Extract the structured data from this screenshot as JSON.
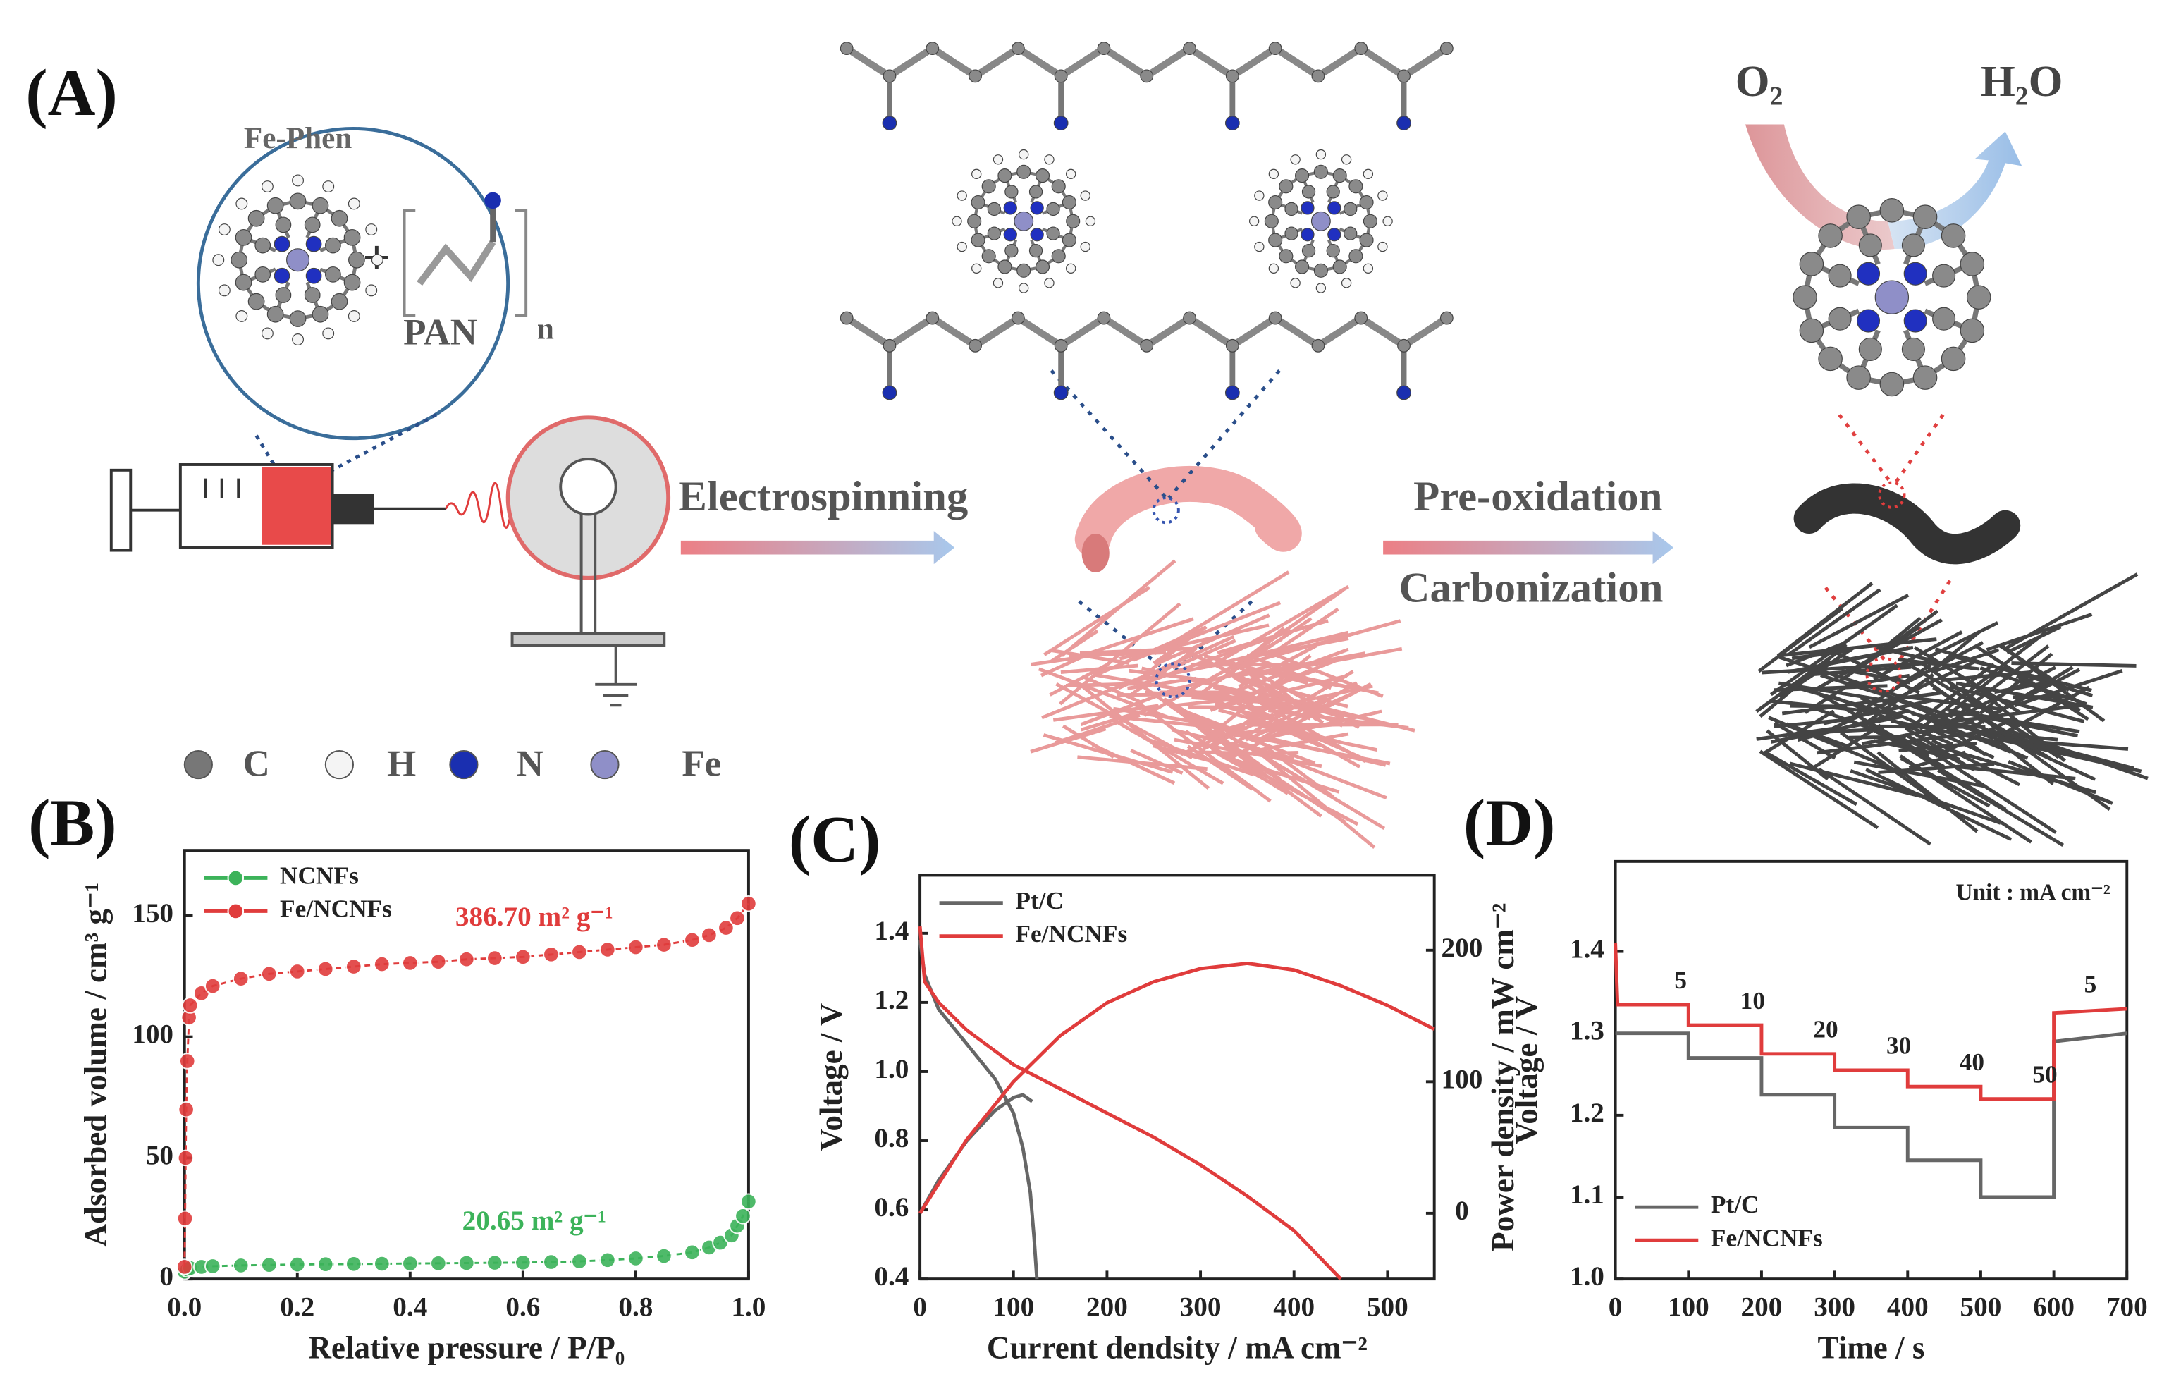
{
  "panel_a": {
    "label": "(A)",
    "fe_phen": "Fe-Phen",
    "plus": "+",
    "pan": "PAN",
    "n": "n",
    "electrospinning": "Electrospinning",
    "pre_oxidation": "Pre-oxidation",
    "carbonization": "Carbonization",
    "o2": "O₂",
    "h2o": "H₂O",
    "legend": [
      "C",
      "H",
      "N",
      "Fe"
    ]
  },
  "chart_data": [
    {
      "type": "line",
      "markers": true,
      "panel_label": "(B)",
      "xlabel": "Relative pressure / P/P₀",
      "ylabel": "Adsorbed volume / cm³ g⁻¹",
      "xlim": [
        0,
        1
      ],
      "ylim": [
        0,
        177
      ],
      "xticks": [
        {
          "value": 0,
          "label": "0.0"
        },
        0.2,
        0.4,
        0.6,
        0.8,
        {
          "value": 1,
          "label": "1.0"
        }
      ],
      "yticks": [
        0,
        50,
        100,
        150
      ],
      "legend": "upper left",
      "series": [
        {
          "name": "NCNFs",
          "color": "#3cb35a",
          "x": [
            0,
            0.005,
            0.01,
            0.03,
            0.05,
            0.1,
            0.15,
            0.2,
            0.25,
            0.3,
            0.35,
            0.4,
            0.45,
            0.5,
            0.55,
            0.6,
            0.65,
            0.7,
            0.75,
            0.8,
            0.85,
            0.9,
            0.93,
            0.95,
            0.97,
            0.98,
            0.99,
            1.0
          ],
          "values": [
            3,
            4,
            4.5,
            5,
            5.3,
            5.6,
            5.8,
            6,
            6.1,
            6.2,
            6.3,
            6.4,
            6.5,
            6.6,
            6.7,
            6.8,
            7,
            7.3,
            7.8,
            8.5,
            9.5,
            11,
            13,
            15,
            18,
            22,
            26,
            32
          ]
        },
        {
          "name": "Fe/NCNFs",
          "color": "#e03c3c",
          "x": [
            0,
            0.001,
            0.002,
            0.003,
            0.005,
            0.008,
            0.01,
            0.03,
            0.05,
            0.1,
            0.15,
            0.2,
            0.25,
            0.3,
            0.35,
            0.4,
            0.45,
            0.5,
            0.55,
            0.6,
            0.65,
            0.7,
            0.75,
            0.8,
            0.85,
            0.9,
            0.93,
            0.96,
            0.98,
            1.0
          ],
          "values": [
            5,
            25,
            50,
            70,
            90,
            108,
            113,
            118,
            121,
            124,
            126,
            127,
            128,
            129,
            130,
            130.5,
            131,
            132,
            132.5,
            133,
            134,
            135,
            136,
            137,
            138,
            140,
            142,
            145,
            149,
            155
          ]
        }
      ],
      "annotations": [
        "20.65 m² g⁻¹",
        "386.70 m² g⁻¹"
      ]
    },
    {
      "type": "line",
      "panel_label": "(C)",
      "xlabel": "Current dendsity / mA cm⁻²",
      "ylabel": "Voltage / V",
      "y2label": "Power density / mW cm⁻²",
      "xlim": [
        0,
        550
      ],
      "ylim": [
        0.4,
        1.568
      ],
      "y2lim": [
        -50,
        257
      ],
      "xticks": [
        0,
        100,
        200,
        300,
        400,
        500
      ],
      "yticks": [
        0.4,
        0.6,
        0.8,
        {
          "value": 1,
          "label": "1.0"
        },
        1.2,
        1.4
      ],
      "y2ticks": [
        0,
        100,
        200
      ],
      "legend": "upper left",
      "series": [
        {
          "name": "Pt/C",
          "color": "#666666",
          "x": [
            0,
            5,
            20,
            50,
            80,
            100,
            110,
            118,
            122,
            125
          ],
          "values": [
            1.38,
            1.28,
            1.18,
            1.08,
            0.98,
            0.88,
            0.78,
            0.65,
            0.52,
            0.4
          ]
        },
        {
          "name": "Fe/NCNFs",
          "color": "#e03c3c",
          "x": [
            0,
            5,
            20,
            50,
            100,
            150,
            200,
            250,
            300,
            350,
            400,
            450
          ],
          "values": [
            1.42,
            1.26,
            1.2,
            1.12,
            1.02,
            0.95,
            0.88,
            0.81,
            0.73,
            0.64,
            0.54,
            0.4
          ]
        },
        {
          "name": "Pt/C",
          "color": "#666666",
          "axis": "y2",
          "legend_entry": false,
          "x": [
            0,
            20,
            50,
            80,
            100,
            110,
            120
          ],
          "values": [
            0,
            25,
            55,
            78,
            88,
            90,
            85
          ]
        },
        {
          "name": "Fe/NCNFs",
          "color": "#e03c3c",
          "axis": "y2",
          "legend_entry": false,
          "x": [
            0,
            50,
            100,
            150,
            200,
            250,
            300,
            350,
            400,
            450,
            500,
            550
          ],
          "values": [
            0,
            56,
            100,
            135,
            160,
            176,
            186,
            190,
            185,
            173,
            158,
            140
          ]
        }
      ]
    },
    {
      "type": "line",
      "panel_label": "(D)",
      "xlabel": "Time / s",
      "ylabel": "Voltage / V",
      "note": "Unit : mA cm⁻²",
      "xlim": [
        0,
        700
      ],
      "ylim": [
        1.0,
        1.51
      ],
      "xticks": [
        0,
        100,
        200,
        300,
        400,
        500,
        600,
        700
      ],
      "yticks": [
        {
          "value": 1,
          "label": "1.0"
        },
        1.1,
        1.2,
        1.3,
        1.4
      ],
      "legend": "lower left",
      "series": [
        {
          "name": "Pt/C",
          "color": "#666666",
          "x": [
            0,
            100,
            100,
            200,
            200,
            300,
            300,
            400,
            400,
            500,
            500,
            600,
            600,
            700
          ],
          "values": [
            1.3,
            1.3,
            1.27,
            1.27,
            1.225,
            1.225,
            1.185,
            1.185,
            1.145,
            1.145,
            1.1,
            1.1,
            1.29,
            1.3
          ]
        },
        {
          "name": "Fe/NCNFs",
          "color": "#e03c3c",
          "x": [
            0,
            3,
            100,
            100,
            200,
            200,
            300,
            300,
            400,
            400,
            500,
            500,
            600,
            600,
            700
          ],
          "values": [
            1.41,
            1.335,
            1.335,
            1.31,
            1.31,
            1.275,
            1.275,
            1.255,
            1.255,
            1.235,
            1.235,
            1.22,
            1.22,
            1.325,
            1.33
          ]
        }
      ],
      "step_labels": [
        5,
        10,
        20,
        30,
        40,
        50,
        5
      ]
    }
  ]
}
